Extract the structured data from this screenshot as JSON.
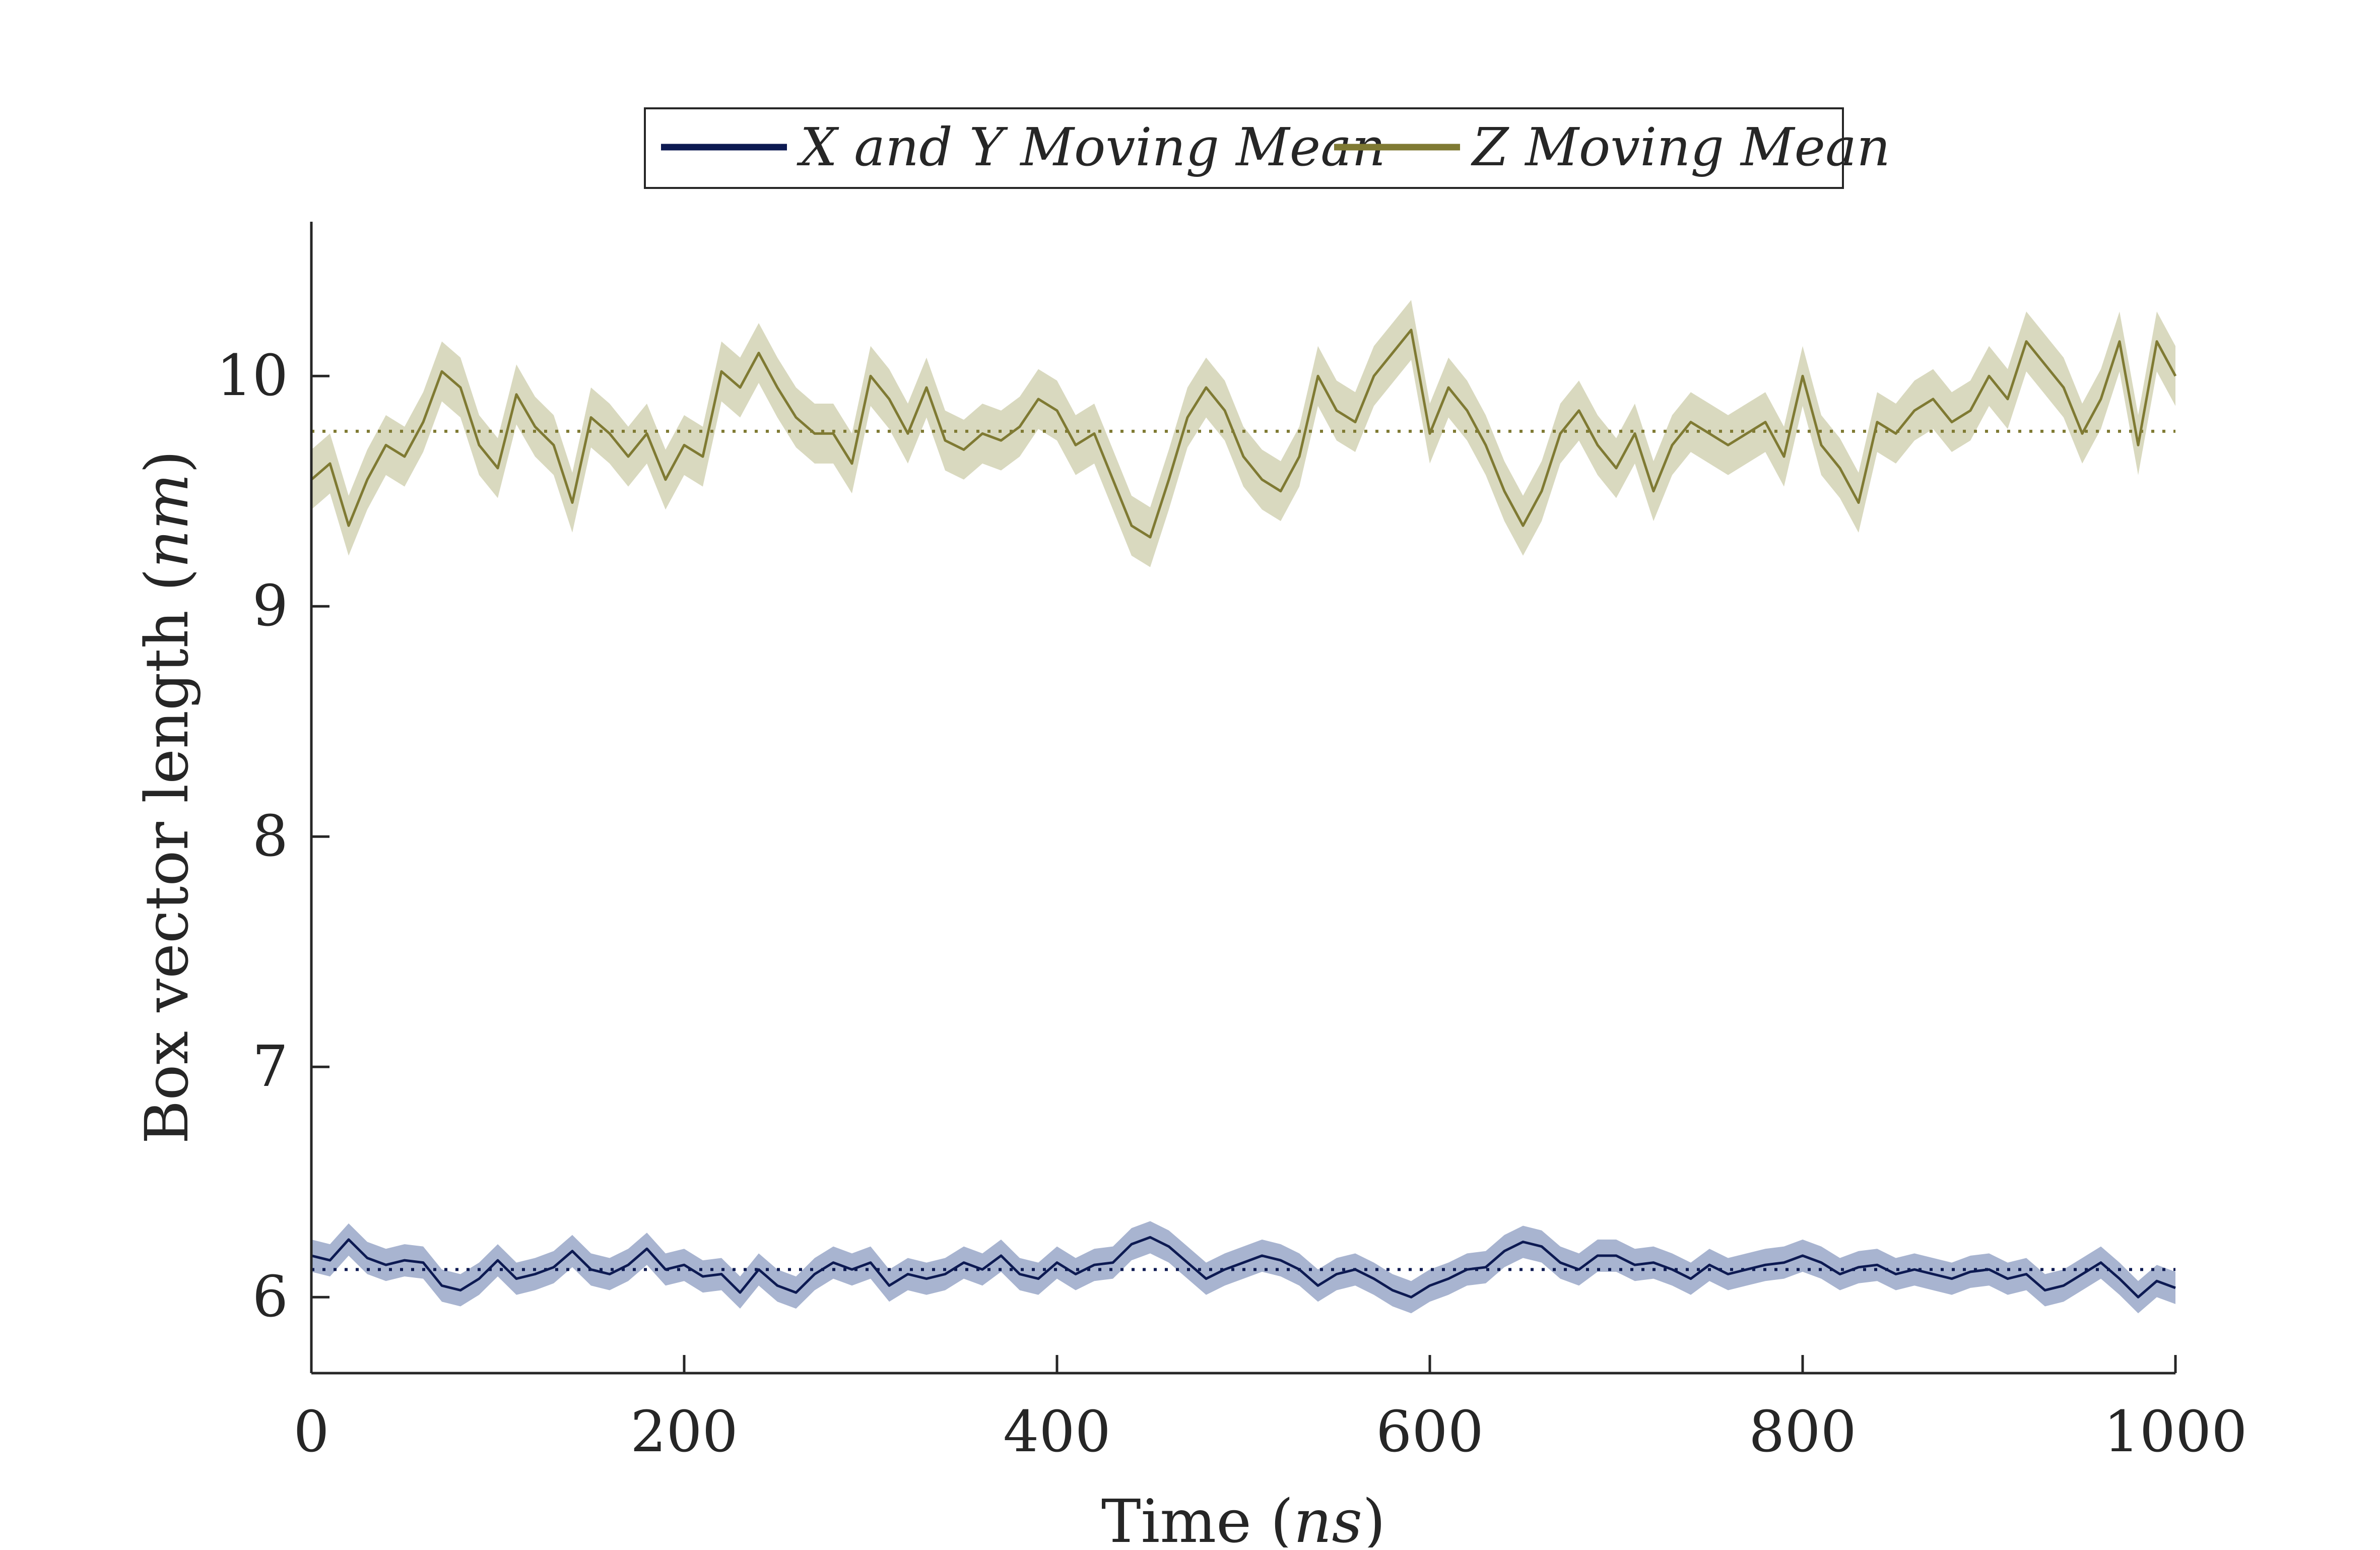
{
  "chart_data": {
    "type": "line",
    "title": "",
    "xlabel": {
      "text": "Time (",
      "unit": "ns",
      "close": ")"
    },
    "ylabel": {
      "text": "Box vector length (",
      "unit": "nm",
      "close": ")"
    },
    "xlim": [
      0,
      1000
    ],
    "ylim": [
      5.67,
      10.67
    ],
    "xticks": [
      0,
      200,
      400,
      600,
      800,
      1000
    ],
    "xtick_labels": [
      "0",
      "200",
      "400",
      "600",
      "800",
      "1000"
    ],
    "yticks": [
      6,
      7,
      8,
      9,
      10
    ],
    "ytick_labels": [
      "6",
      "7",
      "8",
      "9",
      "10"
    ],
    "grid": false,
    "legend": {
      "placement": "top, outside axes",
      "boxed": true
    },
    "series": [
      {
        "name": "X and Y Moving Mean",
        "color": "#0d1a52",
        "band_color": "#a8b4d0",
        "mean_value": 6.12,
        "band_halfwidth": 0.07,
        "x": [
          0,
          10,
          20,
          30,
          40,
          50,
          60,
          70,
          80,
          90,
          100,
          110,
          120,
          130,
          140,
          150,
          160,
          170,
          180,
          190,
          200,
          210,
          220,
          230,
          240,
          250,
          260,
          270,
          280,
          290,
          300,
          310,
          320,
          330,
          340,
          350,
          360,
          370,
          380,
          390,
          400,
          410,
          420,
          430,
          440,
          450,
          460,
          470,
          480,
          490,
          500,
          510,
          520,
          530,
          540,
          550,
          560,
          570,
          580,
          590,
          600,
          610,
          620,
          630,
          640,
          650,
          660,
          670,
          680,
          690,
          700,
          710,
          720,
          730,
          740,
          750,
          760,
          770,
          780,
          790,
          800,
          810,
          820,
          830,
          840,
          850,
          860,
          870,
          880,
          890,
          900,
          910,
          920,
          930,
          940,
          950,
          960,
          970,
          980,
          990,
          1000
        ],
        "y": [
          6.18,
          6.16,
          6.25,
          6.17,
          6.14,
          6.16,
          6.15,
          6.05,
          6.03,
          6.08,
          6.16,
          6.08,
          6.1,
          6.13,
          6.2,
          6.12,
          6.1,
          6.14,
          6.21,
          6.12,
          6.14,
          6.09,
          6.1,
          6.02,
          6.12,
          6.05,
          6.02,
          6.1,
          6.15,
          6.12,
          6.15,
          6.05,
          6.1,
          6.08,
          6.1,
          6.15,
          6.12,
          6.18,
          6.1,
          6.08,
          6.15,
          6.1,
          6.14,
          6.15,
          6.23,
          6.26,
          6.22,
          6.15,
          6.08,
          6.12,
          6.15,
          6.18,
          6.16,
          6.12,
          6.05,
          6.1,
          6.12,
          6.08,
          6.03,
          6.0,
          6.05,
          6.08,
          6.12,
          6.13,
          6.2,
          6.24,
          6.22,
          6.15,
          6.12,
          6.18,
          6.18,
          6.14,
          6.15,
          6.12,
          6.08,
          6.14,
          6.1,
          6.12,
          6.14,
          6.15,
          6.18,
          6.15,
          6.1,
          6.13,
          6.14,
          6.1,
          6.12,
          6.1,
          6.08,
          6.11,
          6.12,
          6.08,
          6.1,
          6.03,
          6.05,
          6.1,
          6.15,
          6.08,
          6.0,
          6.07,
          6.04
        ]
      },
      {
        "name": "Z Moving Mean",
        "color": "#7f7a33",
        "band_color": "#d9d9bf",
        "mean_value": 9.76,
        "band_halfwidth": 0.13,
        "x": [
          0,
          10,
          20,
          30,
          40,
          50,
          60,
          70,
          80,
          90,
          100,
          110,
          120,
          130,
          140,
          150,
          160,
          170,
          180,
          190,
          200,
          210,
          220,
          230,
          240,
          250,
          260,
          270,
          280,
          290,
          300,
          310,
          320,
          330,
          340,
          350,
          360,
          370,
          380,
          390,
          400,
          410,
          420,
          430,
          440,
          450,
          460,
          470,
          480,
          490,
          500,
          510,
          520,
          530,
          540,
          550,
          560,
          570,
          580,
          590,
          600,
          610,
          620,
          630,
          640,
          650,
          660,
          670,
          680,
          690,
          700,
          710,
          720,
          730,
          740,
          750,
          760,
          770,
          780,
          790,
          800,
          810,
          820,
          830,
          840,
          850,
          860,
          870,
          880,
          890,
          900,
          910,
          920,
          930,
          940,
          950,
          960,
          970,
          980,
          990,
          1000
        ],
        "y": [
          9.55,
          9.62,
          9.35,
          9.55,
          9.7,
          9.65,
          9.8,
          10.02,
          9.95,
          9.7,
          9.6,
          9.92,
          9.78,
          9.7,
          9.45,
          9.82,
          9.75,
          9.65,
          9.75,
          9.55,
          9.7,
          9.65,
          10.02,
          9.95,
          10.1,
          9.95,
          9.82,
          9.75,
          9.75,
          9.62,
          10.0,
          9.9,
          9.75,
          9.95,
          9.72,
          9.68,
          9.75,
          9.72,
          9.78,
          9.9,
          9.85,
          9.7,
          9.75,
          9.55,
          9.35,
          9.3,
          9.55,
          9.82,
          9.95,
          9.85,
          9.65,
          9.55,
          9.5,
          9.65,
          10.0,
          9.85,
          9.8,
          10.0,
          10.1,
          10.2,
          9.75,
          9.95,
          9.85,
          9.7,
          9.5,
          9.35,
          9.5,
          9.75,
          9.85,
          9.7,
          9.6,
          9.75,
          9.5,
          9.7,
          9.8,
          9.75,
          9.7,
          9.75,
          9.8,
          9.65,
          10.0,
          9.7,
          9.6,
          9.45,
          9.8,
          9.75,
          9.85,
          9.9,
          9.8,
          9.85,
          10.0,
          9.9,
          10.15,
          10.05,
          9.95,
          9.75,
          9.9,
          10.15,
          9.7,
          10.15,
          10.0
        ]
      }
    ]
  }
}
